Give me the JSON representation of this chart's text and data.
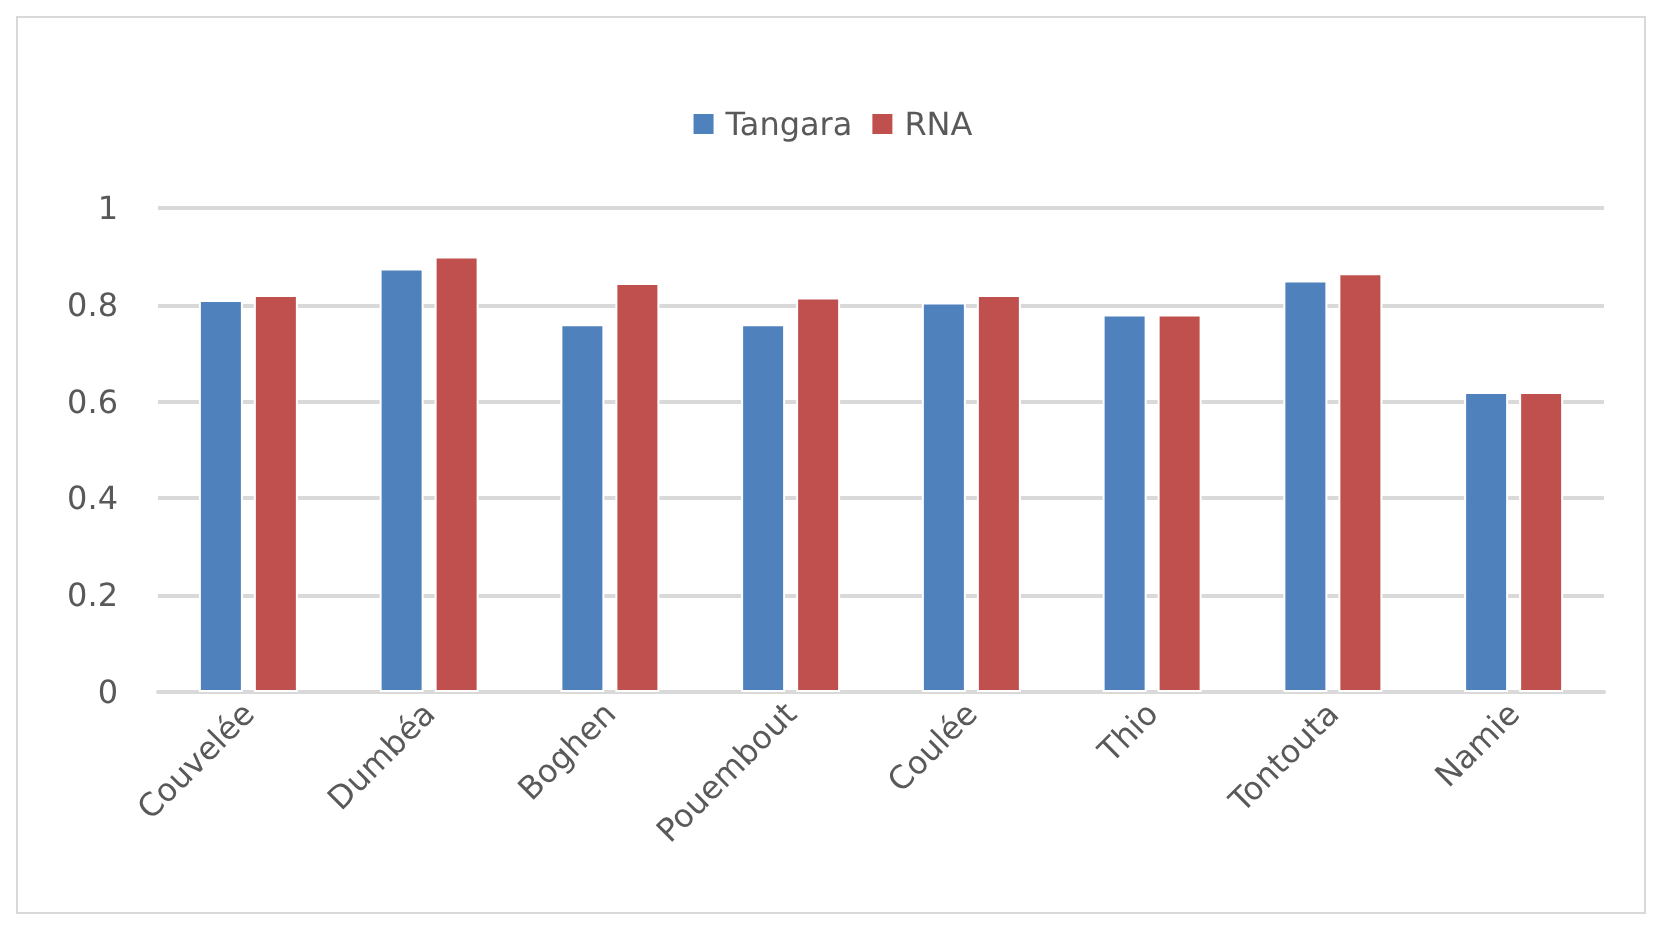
{
  "chart_data": {
    "type": "bar",
    "categories": [
      "Couvelée",
      "Dumbéa",
      "Boghen",
      "Pouembout",
      "Coulée",
      "Thio",
      "Tontouta",
      "Namie"
    ],
    "series": [
      {
        "name": "Tangara",
        "color": "#4f81bd",
        "values": [
          0.81,
          0.875,
          0.76,
          0.76,
          0.805,
          0.78,
          0.85,
          0.62
        ]
      },
      {
        "name": "RNA",
        "color": "#c0504d",
        "values": [
          0.82,
          0.9,
          0.845,
          0.815,
          0.82,
          0.78,
          0.865,
          0.62
        ]
      }
    ],
    "ylim": [
      0,
      1
    ],
    "yticks": [
      0,
      0.2,
      0.4,
      0.6,
      0.8,
      1
    ],
    "grid": "y",
    "legend": "top"
  }
}
